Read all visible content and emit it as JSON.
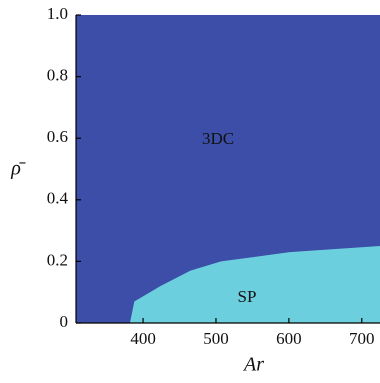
{
  "chart_data": {
    "type": "region",
    "xlabel": "Ar",
    "ylabel": "ρ̄",
    "xlim": [
      308,
      725
    ],
    "ylim": [
      0,
      1
    ],
    "xticks": [
      400,
      500,
      600,
      700
    ],
    "yticks": [
      0,
      0.2,
      0.4,
      0.6,
      0.8,
      {
        "value": 1,
        "label": "1.0"
      }
    ],
    "regions": [
      {
        "name": "3DC",
        "color": "#3c4ea7"
      },
      {
        "name": "SP",
        "color": "#6ccfdd"
      }
    ],
    "boundary": {
      "x": [
        382,
        388,
        424,
        465,
        507,
        601,
        725
      ],
      "y": [
        0,
        0.07,
        0.12,
        0.17,
        0.2,
        0.23,
        0.25
      ]
    }
  }
}
